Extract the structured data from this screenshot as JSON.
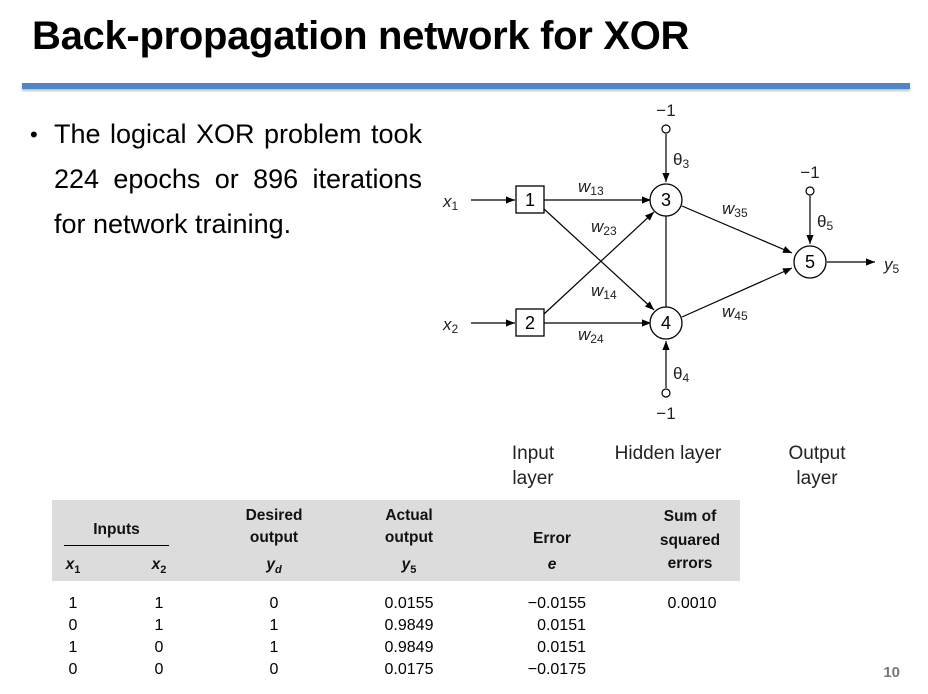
{
  "title": "Back-propagation network for XOR",
  "bullet": "The logical XOR problem took 224 epochs or 896 iterations for network training.",
  "network": {
    "inputs": [
      {
        "label": "x",
        "sub": "1"
      },
      {
        "label": "x",
        "sub": "2"
      }
    ],
    "nodes": [
      "1",
      "2",
      "3",
      "4",
      "5"
    ],
    "weights": [
      {
        "label": "w",
        "sub": "13"
      },
      {
        "label": "w",
        "sub": "23"
      },
      {
        "label": "w",
        "sub": "14"
      },
      {
        "label": "w",
        "sub": "24"
      },
      {
        "label": "w",
        "sub": "35"
      },
      {
        "label": "w",
        "sub": "45"
      }
    ],
    "thresholds": [
      {
        "label": "θ",
        "sub": "3",
        "bias": "−1"
      },
      {
        "label": "θ",
        "sub": "4",
        "bias": "−1"
      },
      {
        "label": "θ",
        "sub": "5",
        "bias": "−1"
      }
    ],
    "output": {
      "label": "y",
      "sub": "5"
    }
  },
  "layers": {
    "input": "Input layer",
    "hidden": "Hidden layer",
    "output": "Output layer"
  },
  "table": {
    "headers": {
      "inputs": "Inputs",
      "desired_line1": "Desired",
      "desired_line2": "output",
      "actual_line1": "Actual",
      "actual_line2": "output",
      "error": "Error",
      "sse_line1": "Sum of",
      "sse_line2": "squared",
      "sse_line3": "errors",
      "x1": "x",
      "x1_sub": "1",
      "x2": "x",
      "x2_sub": "2",
      "yd": "y",
      "yd_sub": "d",
      "y5": "y",
      "y5_sub": "5",
      "e": "e"
    },
    "rows": [
      {
        "x1": "1",
        "x2": "1",
        "yd": "0",
        "y5": "0.0155",
        "e": "−0.0155",
        "sse": "0.0010"
      },
      {
        "x1": "0",
        "x2": "1",
        "yd": "1",
        "y5": "0.9849",
        "e": "0.0151",
        "sse": ""
      },
      {
        "x1": "1",
        "x2": "0",
        "yd": "1",
        "y5": "0.9849",
        "e": "0.0151",
        "sse": ""
      },
      {
        "x1": "0",
        "x2": "0",
        "yd": "0",
        "y5": "0.0175",
        "e": "−0.0175",
        "sse": ""
      }
    ]
  },
  "page_number": "10",
  "colors": {
    "accent_rule": "#4f86c6",
    "table_header_bg": "#dcdcdc"
  }
}
